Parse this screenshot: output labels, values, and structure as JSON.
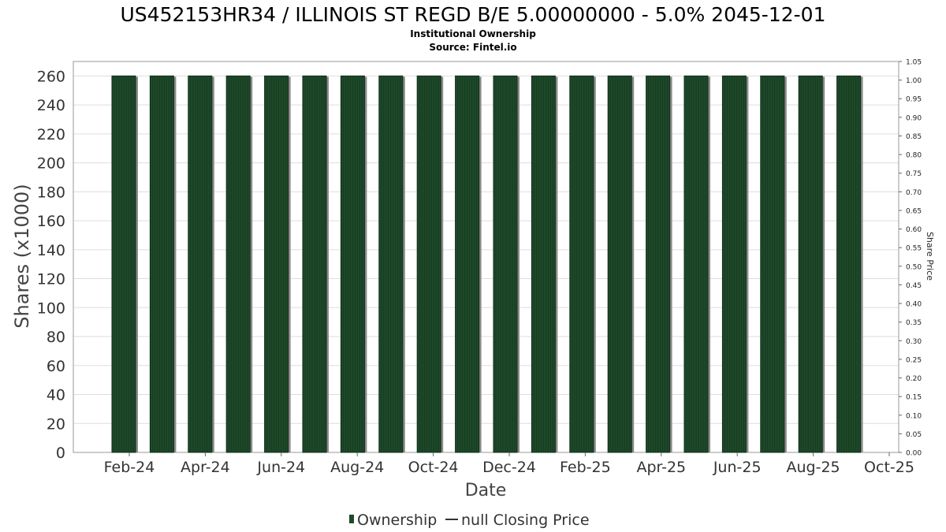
{
  "chart_data": {
    "type": "bar",
    "title": "US452153HR34 / ILLINOIS ST REGD B/E 5.00000000 - 5.0% 2045-12-01",
    "subtitle": "Institutional Ownership",
    "source": "Source: Fintel.io",
    "xlabel": "Date",
    "ylabel": "Shares (x1000)",
    "y2label": "Share Price",
    "ylim": [
      0,
      270
    ],
    "y2lim": [
      0,
      1.05
    ],
    "yticks": [
      "0",
      "20",
      "40",
      "60",
      "80",
      "100",
      "120",
      "140",
      "160",
      "180",
      "200",
      "220",
      "240",
      "260"
    ],
    "y2ticks": [
      "0.00",
      "0.05",
      "0.10",
      "0.15",
      "0.20",
      "0.25",
      "0.30",
      "0.35",
      "0.40",
      "0.45",
      "0.50",
      "0.55",
      "0.60",
      "0.65",
      "0.70",
      "0.75",
      "0.80",
      "0.85",
      "0.90",
      "0.95",
      "1.00",
      "1.05"
    ],
    "xticks": [
      "Feb-24",
      "Apr-24",
      "Jun-24",
      "Aug-24",
      "Oct-24",
      "Dec-24",
      "Feb-25",
      "Apr-25",
      "Jun-25",
      "Aug-25",
      "Oct-25"
    ],
    "series": [
      {
        "name": "Ownership",
        "values": [
          260,
          260,
          260,
          260,
          260,
          260,
          260,
          260,
          260,
          260,
          260,
          260,
          260,
          260,
          260,
          260,
          260,
          260,
          260,
          260
        ]
      },
      {
        "name": "null Closing Price",
        "values": []
      }
    ],
    "grid": true,
    "legend_position": "bottom",
    "colors": {
      "bar": "#1e4a2a",
      "bar_shadow": "#8a8a8a",
      "grid": "#dddddd",
      "line": "#333333"
    }
  }
}
